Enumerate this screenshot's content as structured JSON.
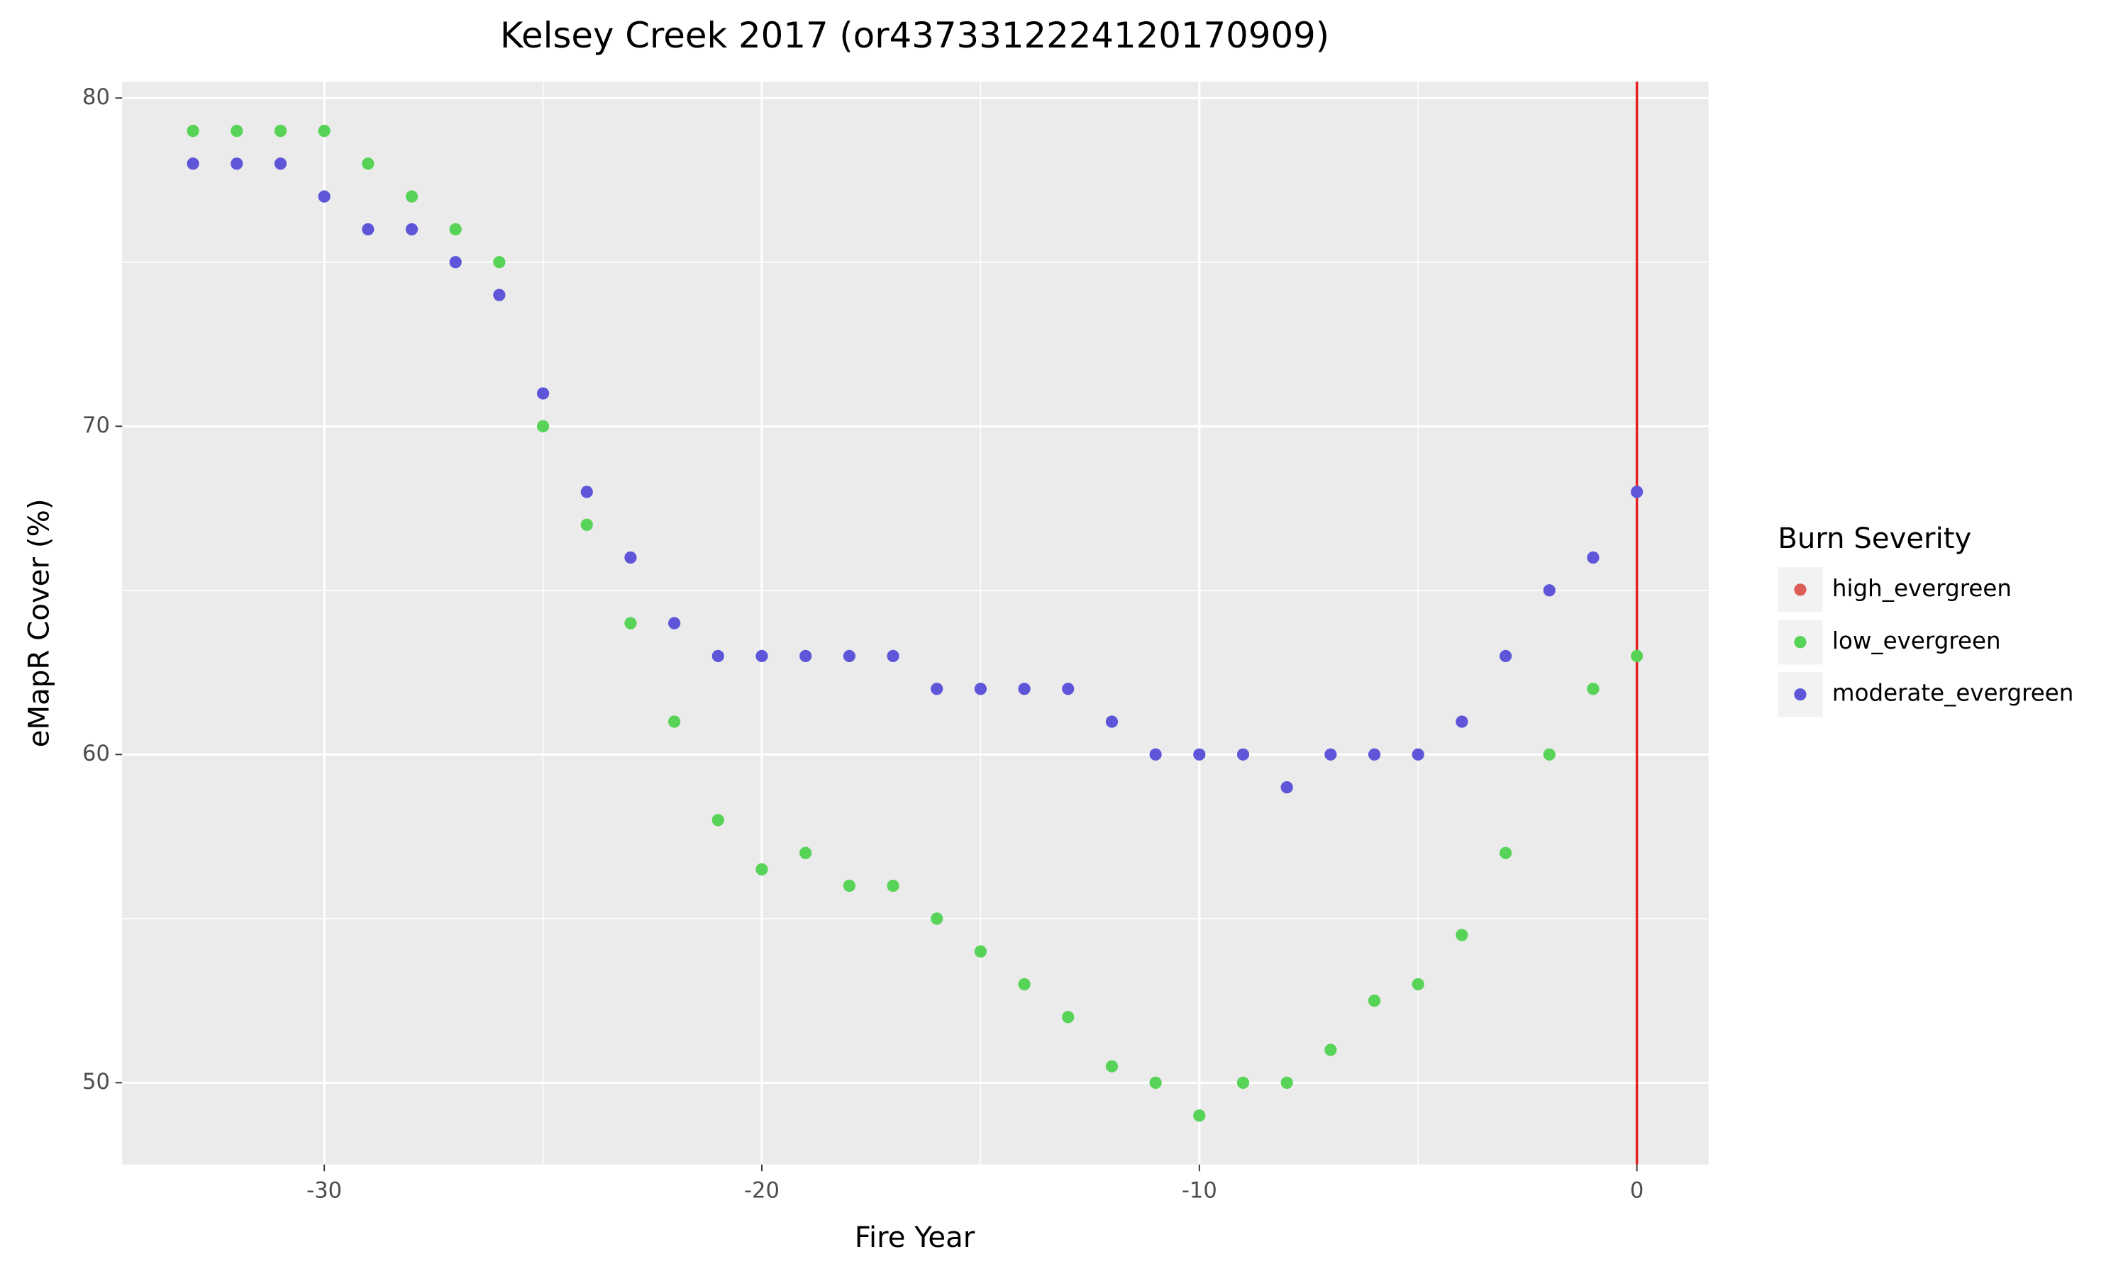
{
  "chart_data": {
    "type": "scatter",
    "title": "Kelsey Creek 2017 (or4373312224120170909)",
    "x_label": "Fire Year",
    "y_label": "eMapR Cover (%)",
    "legend_title": "Burn Severity",
    "legend": "right",
    "xlim": [
      -34.62,
      1.64
    ],
    "ylim": [
      47.51,
      80.5
    ],
    "xticks": [
      -30,
      -20,
      -10,
      0
    ],
    "yticks": [
      50,
      60,
      70,
      80
    ],
    "grid": true,
    "vline": {
      "x": 0,
      "color": "#e8201e"
    },
    "series": [
      {
        "name": "high_evergreen",
        "color": "#db5f57",
        "x": [],
        "values": []
      },
      {
        "name": "low_evergreen",
        "color": "#57d357",
        "x": [
          -33,
          -32,
          -31,
          -30,
          -29,
          -28,
          -27,
          -26,
          -25,
          -24,
          -23,
          -22,
          -21,
          -20,
          -19,
          -18,
          -17,
          -16,
          -15,
          -14,
          -13,
          -12,
          -11,
          -10,
          -9,
          -8,
          -7,
          -6,
          -5,
          -4,
          -3,
          -2,
          -1,
          0
        ],
        "values": [
          79,
          79,
          79,
          79,
          78,
          77,
          76,
          75,
          70,
          67,
          64,
          61,
          58,
          56.5,
          57,
          56,
          56,
          55,
          54,
          53,
          52,
          50.5,
          50,
          49,
          50,
          50,
          51,
          52.5,
          53,
          54.5,
          57,
          60,
          62,
          63
        ]
      },
      {
        "name": "moderate_evergreen",
        "color": "#5e55d9",
        "x": [
          -33,
          -32,
          -31,
          -30,
          -29,
          -28,
          -27,
          -26,
          -25,
          -24,
          -23,
          -22,
          -21,
          -20,
          -19,
          -18,
          -17,
          -16,
          -15,
          -14,
          -13,
          -12,
          -11,
          -10,
          -9,
          -8,
          -7,
          -6,
          -5,
          -4,
          -3,
          -2,
          -1,
          0
        ],
        "values": [
          78,
          78,
          78,
          77,
          76,
          76,
          75,
          74,
          71,
          68,
          66,
          64,
          63,
          63,
          63,
          63,
          63,
          62,
          62,
          62,
          62,
          61,
          60,
          60,
          60,
          59,
          60,
          60,
          60,
          61,
          63,
          65,
          66,
          68
        ]
      }
    ]
  }
}
